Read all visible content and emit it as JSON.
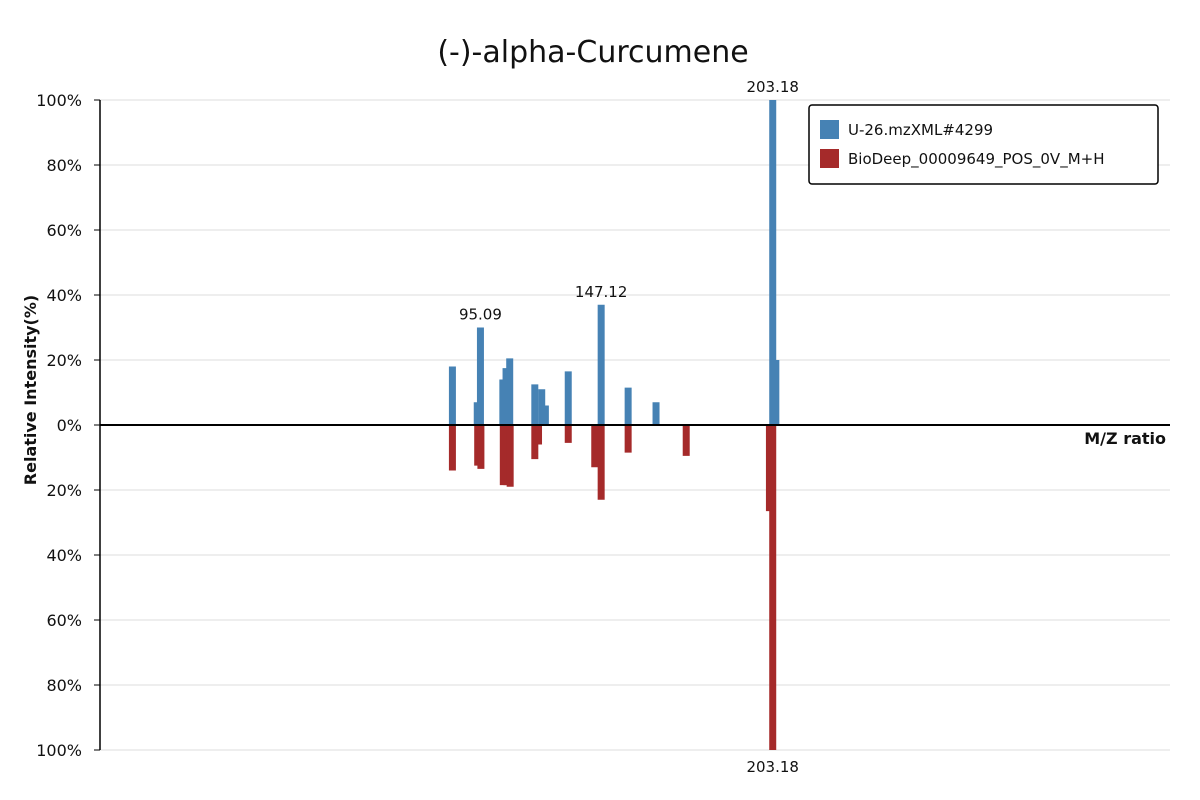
{
  "chart_data": {
    "type": "bar",
    "title": "(-)-alpha-Curcumene",
    "xlabel": "M/Z ratio",
    "ylabel": "Relative Intensity(%)",
    "xlim": [
      0,
      234
    ],
    "ylim": [
      -100,
      100
    ],
    "yticks_top": [
      "100%",
      "80%",
      "60%",
      "40%",
      "20%",
      "0%"
    ],
    "yticks_bottom": [
      "20%",
      "40%",
      "60%",
      "80%",
      "100%"
    ],
    "grid": true,
    "legend_position": "top-right",
    "series": [
      {
        "name": "U-26.mzXML#4299",
        "color": "#4682b4",
        "direction": "up",
        "peaks": [
          {
            "mz": 77.07,
            "intensity": 18
          },
          {
            "mz": 82.5,
            "intensity": 7
          },
          {
            "mz": 83.2,
            "intensity": 30
          },
          {
            "mz": 88.1,
            "intensity": 14
          },
          {
            "mz": 88.8,
            "intensity": 17.5
          },
          {
            "mz": 89.6,
            "intensity": 20.5
          },
          {
            "mz": 95.09,
            "intensity": 12.5
          },
          {
            "mz": 96.6,
            "intensity": 11
          },
          {
            "mz": 97.4,
            "intensity": 6
          },
          {
            "mz": 102.4,
            "intensity": 16.5
          },
          {
            "mz": 109.6,
            "intensity": 37
          },
          {
            "mz": 115.5,
            "intensity": 11.5
          },
          {
            "mz": 121.6,
            "intensity": 7
          },
          {
            "mz": 147.12,
            "intensity": 100
          },
          {
            "mz": 147.8,
            "intensity": 20
          }
        ],
        "labels": [
          {
            "mz": 83.2,
            "intensity": 30,
            "text": "95.09"
          },
          {
            "mz": 109.6,
            "intensity": 37,
            "text": "147.12"
          },
          {
            "mz": 147.12,
            "intensity": 100,
            "text": "203.18"
          }
        ]
      },
      {
        "name": "BioDeep_00009649_POS_0V_M+H",
        "color": "#a52a2a",
        "direction": "down",
        "peaks": [
          {
            "mz": 77.07,
            "intensity": 14
          },
          {
            "mz": 82.6,
            "intensity": 12.5
          },
          {
            "mz": 83.3,
            "intensity": 13.5
          },
          {
            "mz": 88.2,
            "intensity": 18.5
          },
          {
            "mz": 89.0,
            "intensity": 18.5
          },
          {
            "mz": 89.7,
            "intensity": 19
          },
          {
            "mz": 95.09,
            "intensity": 10.5
          },
          {
            "mz": 95.9,
            "intensity": 6
          },
          {
            "mz": 102.4,
            "intensity": 5.5
          },
          {
            "mz": 108.2,
            "intensity": 13
          },
          {
            "mz": 109.6,
            "intensity": 23
          },
          {
            "mz": 115.5,
            "intensity": 8.5
          },
          {
            "mz": 128.2,
            "intensity": 9.5
          },
          {
            "mz": 146.4,
            "intensity": 26.5
          },
          {
            "mz": 147.12,
            "intensity": 100
          }
        ],
        "labels": [
          {
            "mz": 147.12,
            "intensity": 100,
            "text": "203.18"
          }
        ]
      }
    ]
  }
}
